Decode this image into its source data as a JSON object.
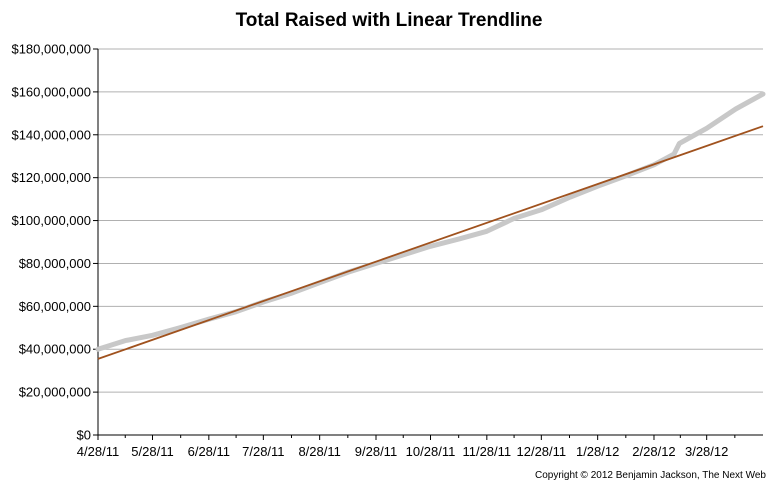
{
  "chart_data": {
    "type": "line",
    "title": "Total Raised with Linear Trendline",
    "xlabel": "",
    "ylabel": "",
    "x_ticks": [
      "4/28/11",
      "5/28/11",
      "6/28/11",
      "7/28/11",
      "8/28/11",
      "9/28/11",
      "10/28/11",
      "11/28/11",
      "12/28/11",
      "1/28/12",
      "2/28/12",
      "3/28/12"
    ],
    "y_ticks": [
      "$0",
      "$20,000,000",
      "$40,000,000",
      "$60,000,000",
      "$80,000,000",
      "$100,000,000",
      "$120,000,000",
      "$140,000,000",
      "$160,000,000",
      "$180,000,000"
    ],
    "ylim": [
      0,
      180000000
    ],
    "xlim": [
      "4/28/11",
      "4/28/12"
    ],
    "grid": true,
    "legend": "none",
    "series": [
      {
        "kind": "data",
        "color": "#c8c8c8",
        "points": [
          [
            "4/28/11",
            40000000
          ],
          [
            "5/13/11",
            44000000
          ],
          [
            "5/28/11",
            46500000
          ],
          [
            "6/12/11",
            50000000
          ],
          [
            "6/28/11",
            54000000
          ],
          [
            "7/13/11",
            57500000
          ],
          [
            "7/28/11",
            62000000
          ],
          [
            "8/12/11",
            66000000
          ],
          [
            "8/28/11",
            71000000
          ],
          [
            "9/13/11",
            76000000
          ],
          [
            "9/28/11",
            80000000
          ],
          [
            "10/13/11",
            84000000
          ],
          [
            "10/28/11",
            88000000
          ],
          [
            "11/13/11",
            91500000
          ],
          [
            "11/28/11",
            95000000
          ],
          [
            "12/13/11",
            101000000
          ],
          [
            "12/28/11",
            105000000
          ],
          [
            "1/13/12",
            111000000
          ],
          [
            "1/28/12",
            116000000
          ],
          [
            "2/13/12",
            121000000
          ],
          [
            "2/28/12",
            126000000
          ],
          [
            "3/10/12",
            131000000
          ],
          [
            "3/13/12",
            136000000
          ],
          [
            "3/28/12",
            143000000
          ],
          [
            "4/13/12",
            152000000
          ],
          [
            "4/28/12",
            159000000
          ]
        ]
      },
      {
        "kind": "trendline",
        "color": "#a0521e",
        "points": [
          [
            "4/28/11",
            35500000
          ],
          [
            "4/28/12",
            144000000
          ]
        ]
      }
    ]
  },
  "copyright": "Copyright © 2012 Benjamin Jackson, The Next Web"
}
